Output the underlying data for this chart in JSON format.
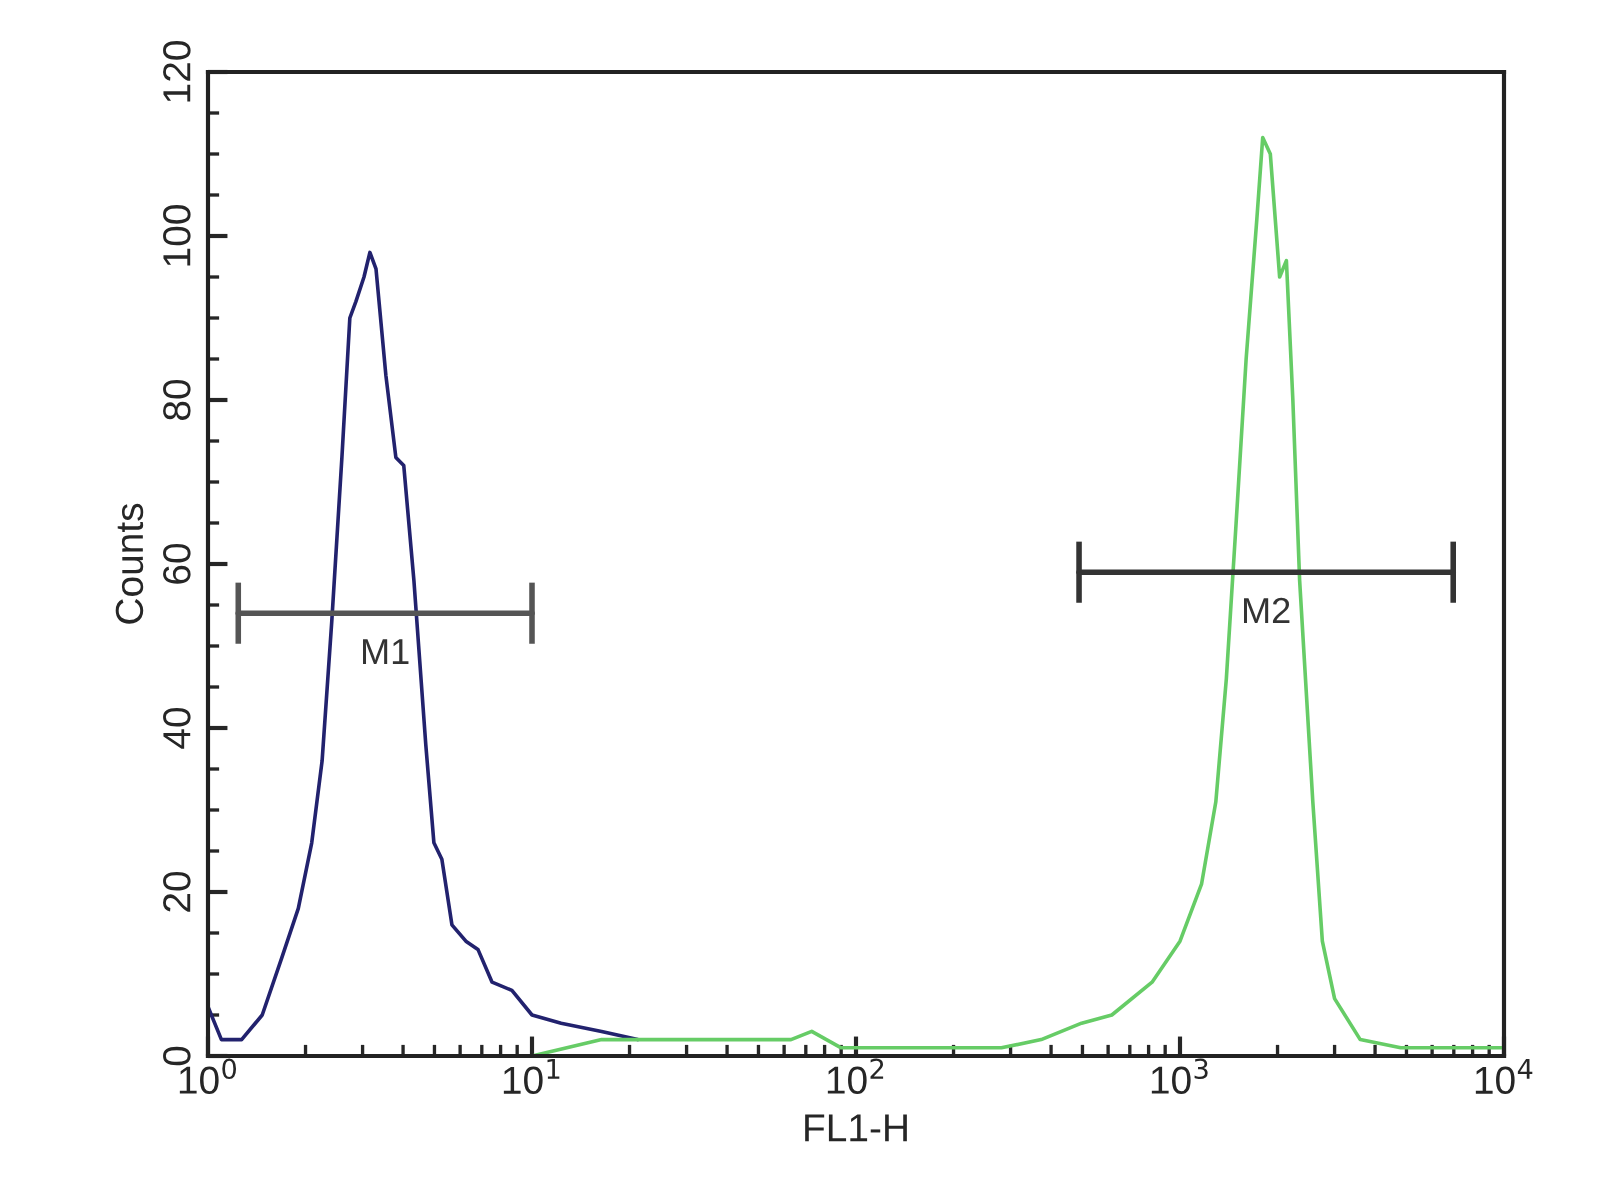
{
  "chart_data": {
    "type": "line",
    "xlabel": "FL1-H",
    "ylabel": "Counts",
    "log": "x",
    "xlim": [
      1,
      10000
    ],
    "xticks": [
      {
        "value": 1,
        "label": "10$^{0}$"
      },
      {
        "value": 10,
        "label": "10$^{1}$"
      },
      {
        "value": 100,
        "label": "10$^{2}$"
      },
      {
        "value": 1000,
        "label": "10$^{3}$"
      },
      {
        "value": 10000,
        "label": "10$^{4}$"
      }
    ],
    "ylim": [
      0,
      120
    ],
    "yticks": [
      0,
      20,
      40,
      60,
      80,
      100,
      120
    ],
    "grid": false,
    "legend": false,
    "marker": "none",
    "line_style": "solid",
    "series": [
      {
        "color": "#22226e",
        "x": [
          1.0,
          1.1,
          1.27,
          1.47,
          1.69,
          1.9,
          2.09,
          2.25,
          2.41,
          2.59,
          2.74,
          2.86,
          3.03,
          3.16,
          3.3,
          3.54,
          3.8,
          4.02,
          4.32,
          4.7,
          4.98,
          5.27,
          5.66,
          6.25,
          6.81,
          7.53,
          8.67,
          10.0,
          12.3,
          16.4,
          21.2
        ],
        "values": [
          6,
          2,
          2,
          5,
          12,
          18,
          26,
          36,
          53,
          73,
          90,
          92,
          95,
          98,
          96,
          83,
          73,
          72,
          58,
          38,
          26,
          24,
          16,
          14,
          13,
          9,
          8,
          5,
          4,
          3,
          2
        ]
      },
      {
        "color": "#66cc66",
        "x": [
          1.0,
          10,
          16.4,
          25,
          38.5,
          63,
          73,
          90,
          139,
          281,
          373,
          497,
          616,
          820,
          1000,
          1166,
          1290,
          1390,
          1490,
          1600,
          1726,
          1800,
          1900,
          2030,
          2130,
          2230,
          2340,
          2570,
          2750,
          3000,
          3600,
          4800,
          6400,
          10000
        ],
        "values": [
          0,
          0,
          2,
          2,
          2,
          2,
          3,
          1,
          1,
          1,
          2,
          4,
          5,
          9,
          14,
          21,
          31,
          46,
          65,
          85,
          102,
          112,
          110,
          95,
          97,
          80,
          58,
          31,
          14,
          7,
          2,
          1,
          1,
          1
        ]
      },
      {
        "name": "M1",
        "color": "#555555",
        "x": [
          1.24,
          10
        ],
        "values": [
          54,
          54
        ]
      },
      {
        "name": "M2",
        "color": "#333333",
        "x": [
          488,
          6970
        ],
        "values": [
          59,
          59
        ]
      }
    ]
  }
}
